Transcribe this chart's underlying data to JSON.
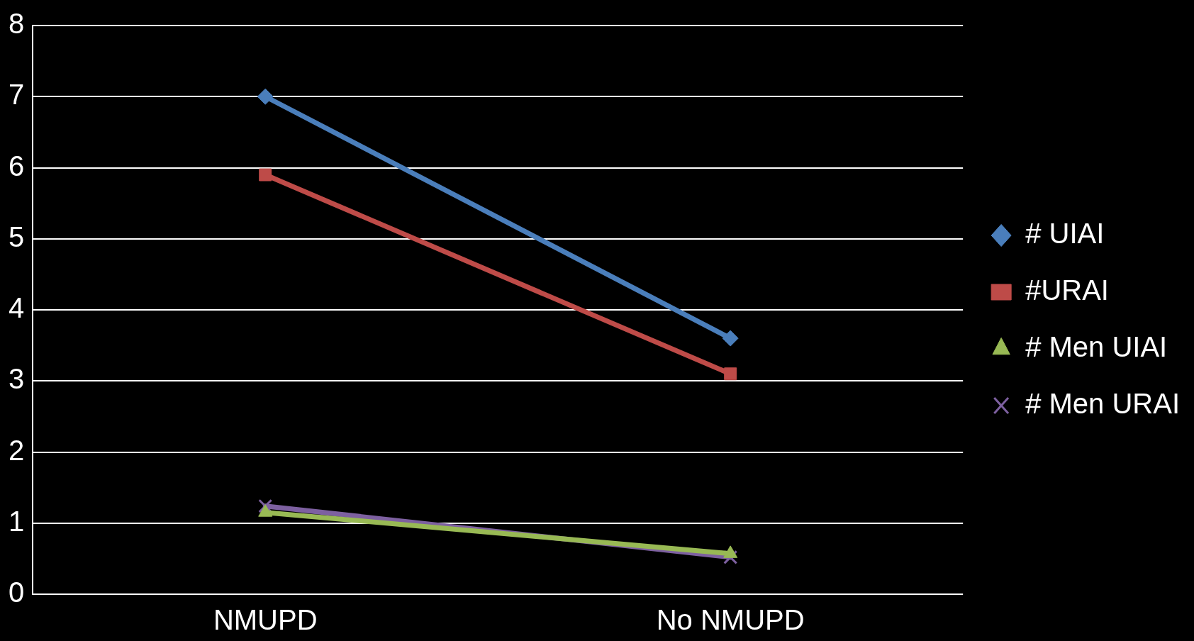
{
  "chart_data": {
    "type": "line",
    "categories": [
      "NMUPD",
      "No NMUPD"
    ],
    "series": [
      {
        "name": "# UIAI",
        "color": "#4a7ebb",
        "values": [
          7.0,
          3.6
        ],
        "marker": "diamond"
      },
      {
        "name": "#URAI",
        "color": "#be4b48",
        "values": [
          5.9,
          3.1
        ],
        "marker": "square"
      },
      {
        "name": "# Men UIAI",
        "color": "#98b954",
        "values": [
          1.15,
          0.57
        ],
        "marker": "triangle"
      },
      {
        "name": "# Men URAI",
        "color": "#7d60a0",
        "values": [
          1.24,
          0.52
        ],
        "marker": "cross"
      }
    ],
    "ylim": [
      0,
      8
    ],
    "yticks": [
      0,
      1,
      2,
      3,
      4,
      5,
      6,
      7,
      8
    ],
    "grid": "y",
    "legend": "right"
  }
}
